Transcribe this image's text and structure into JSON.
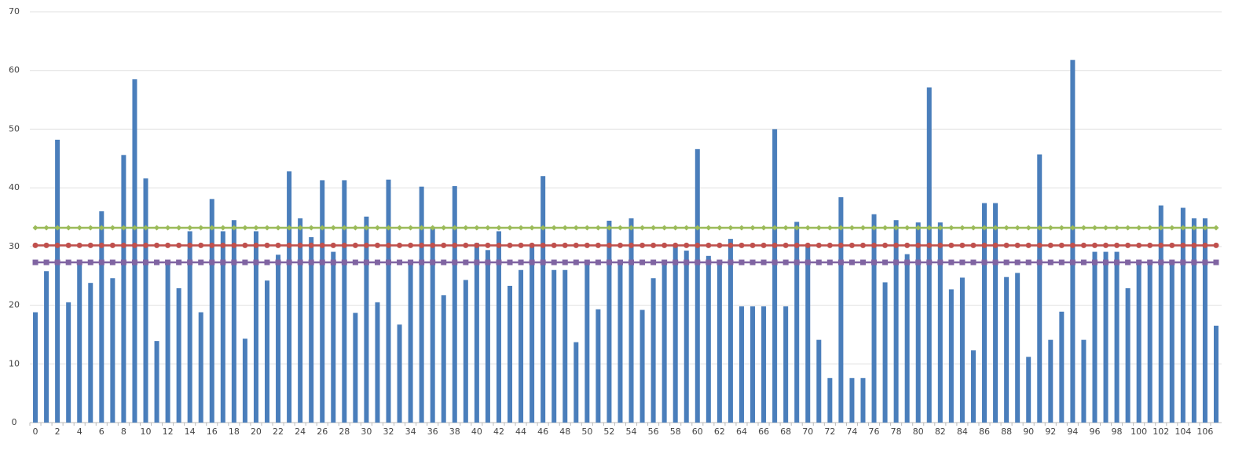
{
  "chart_data": {
    "type": "bar",
    "categories": [
      0,
      null,
      2,
      null,
      4,
      null,
      6,
      null,
      8,
      null,
      10,
      null,
      12,
      null,
      14,
      null,
      16,
      null,
      18,
      null,
      20,
      null,
      22,
      null,
      24,
      null,
      26,
      null,
      28,
      null,
      30,
      null,
      32,
      null,
      34,
      null,
      36,
      null,
      38,
      null,
      40,
      null,
      42,
      null,
      44,
      null,
      46,
      null,
      48,
      null,
      50,
      null,
      52,
      null,
      54,
      null,
      56,
      null,
      58,
      null,
      60,
      null,
      62,
      null,
      64,
      null,
      66,
      null,
      68,
      null,
      70,
      null,
      72,
      null,
      74,
      null,
      76,
      null,
      78,
      null,
      80,
      null,
      82,
      null,
      84,
      null,
      86,
      null,
      88,
      null,
      90,
      null,
      92,
      null,
      94,
      null,
      96,
      null,
      98,
      null,
      100,
      null,
      102,
      null,
      104,
      null,
      106,
      null
    ],
    "ylim": [
      0,
      70
    ],
    "yticks": [
      0,
      10,
      20,
      30,
      40,
      50,
      60,
      70
    ],
    "grid": true,
    "series": [
      {
        "type": "bar",
        "color": "#4a7ebb",
        "values": [
          18.8,
          25.8,
          48.2,
          20.5,
          27.2,
          23.8,
          36.0,
          24.6,
          45.6,
          58.5,
          41.6,
          13.9,
          27.6,
          22.9,
          32.6,
          18.8,
          38.1,
          32.6,
          34.5,
          14.3,
          32.6,
          24.2,
          28.6,
          42.8,
          34.8,
          31.6,
          41.3,
          29.1,
          41.3,
          18.7,
          35.1,
          20.5,
          41.4,
          16.7,
          27.5,
          40.2,
          33.2,
          21.7,
          40.3,
          24.3,
          30.6,
          29.4,
          32.6,
          23.3,
          26.0,
          30.5,
          42.0,
          26.0,
          26.0,
          13.7,
          27.6,
          19.3,
          34.4,
          27.5,
          34.8,
          19.2,
          24.6,
          27.2,
          30.4,
          29.3,
          46.6,
          28.4,
          27.5,
          31.3,
          19.8,
          19.8,
          19.8,
          50.0,
          19.8,
          34.2,
          30.3,
          14.1,
          7.6,
          38.4,
          7.6,
          7.6,
          35.5,
          23.9,
          34.5,
          28.7,
          34.1,
          57.1,
          34.1,
          22.7,
          24.7,
          12.3,
          37.4,
          37.4,
          24.8,
          25.5,
          11.2,
          45.7,
          14.1,
          18.9,
          61.8,
          14.1,
          29.1,
          29.1,
          29.1,
          22.9,
          27.6,
          27.6,
          37.0,
          27.6,
          36.6,
          34.8,
          34.8,
          16.5
        ]
      },
      {
        "type": "line",
        "color": "#9bbb59",
        "marker": "diamond",
        "values": [
          33.2,
          33.2,
          33.2,
          33.2,
          33.2,
          33.2,
          33.2,
          33.2,
          33.2,
          33.2,
          33.2,
          33.2,
          33.2,
          33.2,
          33.2,
          33.2,
          33.2,
          33.2,
          33.2,
          33.2,
          33.2,
          33.2,
          33.2,
          33.2,
          33.2,
          33.2,
          33.2,
          33.2,
          33.2,
          33.2,
          33.2,
          33.2,
          33.2,
          33.2,
          33.2,
          33.2,
          33.2,
          33.2,
          33.2,
          33.2,
          33.2,
          33.2,
          33.2,
          33.2,
          33.2,
          33.2,
          33.2,
          33.2,
          33.2,
          33.2,
          33.2,
          33.2,
          33.2,
          33.2,
          33.2,
          33.2,
          33.2,
          33.2,
          33.2,
          33.2,
          33.2,
          33.2,
          33.2,
          33.2,
          33.2,
          33.2,
          33.2,
          33.2,
          33.2,
          33.2,
          33.2,
          33.2,
          33.2,
          33.2,
          33.2,
          33.2,
          33.2,
          33.2,
          33.2,
          33.2,
          33.2,
          33.2,
          33.2,
          33.2,
          33.2,
          33.2,
          33.2,
          33.2,
          33.2,
          33.2,
          33.2,
          33.2,
          33.2,
          33.2,
          33.2,
          33.2,
          33.2,
          33.2,
          33.2,
          33.2,
          33.2,
          33.2,
          33.2,
          33.2,
          33.2,
          33.2,
          33.2,
          33.2
        ]
      },
      {
        "type": "line",
        "color": "#c0504d",
        "marker": "circle",
        "values": [
          30.2,
          30.2,
          30.2,
          30.2,
          30.2,
          30.2,
          30.2,
          30.2,
          30.2,
          30.2,
          30.2,
          30.2,
          30.2,
          30.2,
          30.2,
          30.2,
          30.2,
          30.2,
          30.2,
          30.2,
          30.2,
          30.2,
          30.2,
          30.2,
          30.2,
          30.2,
          30.2,
          30.2,
          30.2,
          30.2,
          30.2,
          30.2,
          30.2,
          30.2,
          30.2,
          30.2,
          30.2,
          30.2,
          30.2,
          30.2,
          30.2,
          30.2,
          30.2,
          30.2,
          30.2,
          30.2,
          30.2,
          30.2,
          30.2,
          30.2,
          30.2,
          30.2,
          30.2,
          30.2,
          30.2,
          30.2,
          30.2,
          30.2,
          30.2,
          30.2,
          30.2,
          30.2,
          30.2,
          30.2,
          30.2,
          30.2,
          30.2,
          30.2,
          30.2,
          30.2,
          30.2,
          30.2,
          30.2,
          30.2,
          30.2,
          30.2,
          30.2,
          30.2,
          30.2,
          30.2,
          30.2,
          30.2,
          30.2,
          30.2,
          30.2,
          30.2,
          30.2,
          30.2,
          30.2,
          30.2,
          30.2,
          30.2,
          30.2,
          30.2,
          30.2,
          30.2,
          30.2,
          30.2,
          30.2,
          30.2,
          30.2,
          30.2,
          30.2,
          30.2,
          30.2,
          30.2,
          30.2,
          30.2
        ]
      },
      {
        "type": "line",
        "color": "#8064a2",
        "marker": "square",
        "values": [
          27.3,
          27.3,
          27.3,
          27.3,
          27.3,
          27.3,
          27.3,
          27.3,
          27.3,
          27.3,
          27.3,
          27.3,
          27.3,
          27.3,
          27.3,
          27.3,
          27.3,
          27.3,
          27.3,
          27.3,
          27.3,
          27.3,
          27.3,
          27.3,
          27.3,
          27.3,
          27.3,
          27.3,
          27.3,
          27.3,
          27.3,
          27.3,
          27.3,
          27.3,
          27.3,
          27.3,
          27.3,
          27.3,
          27.3,
          27.3,
          27.3,
          27.3,
          27.3,
          27.3,
          27.3,
          27.3,
          27.3,
          27.3,
          27.3,
          27.3,
          27.3,
          27.3,
          27.3,
          27.3,
          27.3,
          27.3,
          27.3,
          27.3,
          27.3,
          27.3,
          27.3,
          27.3,
          27.3,
          27.3,
          27.3,
          27.3,
          27.3,
          27.3,
          27.3,
          27.3,
          27.3,
          27.3,
          27.3,
          27.3,
          27.3,
          27.3,
          27.3,
          27.3,
          27.3,
          27.3,
          27.3,
          27.3,
          27.3,
          27.3,
          27.3,
          27.3,
          27.3,
          27.3,
          27.3,
          27.3,
          27.3,
          27.3,
          27.3,
          27.3,
          27.3,
          27.3,
          27.3,
          27.3,
          27.3,
          27.3,
          27.3,
          27.3,
          27.3,
          27.3,
          27.3,
          27.3,
          27.3,
          27.3
        ]
      }
    ]
  }
}
